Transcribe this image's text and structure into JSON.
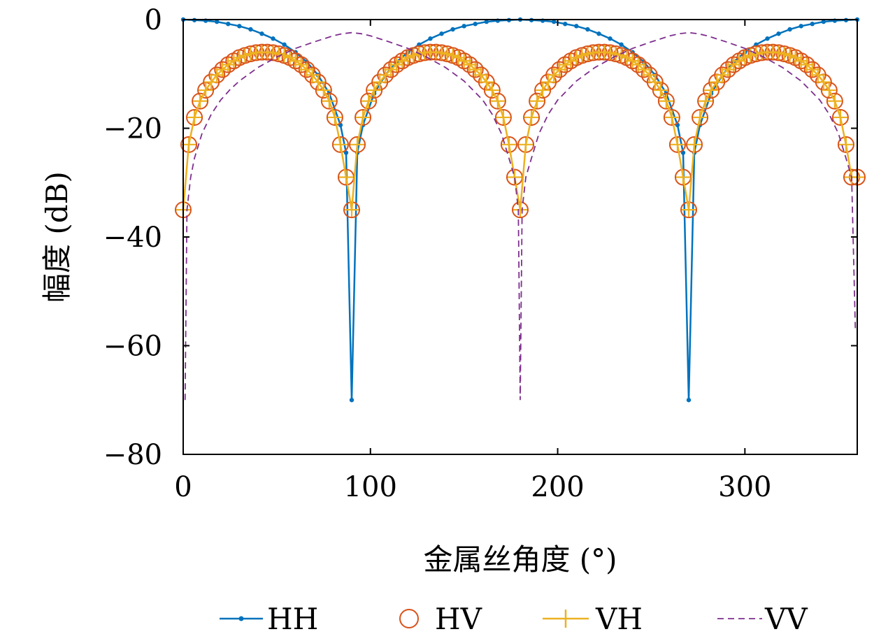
{
  "chart_data": {
    "type": "line",
    "title": "",
    "xlabel": "金属丝角度 (°)",
    "ylabel": "幅度 (dB)",
    "xlim": [
      0,
      360
    ],
    "ylim": [
      -80,
      0
    ],
    "xticks": [
      0,
      100,
      200,
      300
    ],
    "yticks": [
      0,
      -20,
      -40,
      -60,
      -80
    ],
    "xtick_labels": [
      "0",
      "100",
      "200",
      "300"
    ],
    "ytick_labels": [
      "0",
      "−20",
      "−40",
      "−60",
      "−80"
    ],
    "grid": false,
    "legend_position": "bottom",
    "series": [
      {
        "name": "HH",
        "color": "#0072BD",
        "style": "solid-dot",
        "x": [
          0,
          6,
          12,
          18,
          24,
          30,
          36,
          42,
          48,
          54,
          60,
          66,
          72,
          78,
          84,
          87,
          90,
          93,
          96,
          102,
          108,
          114,
          120,
          126,
          132,
          138,
          144,
          150,
          156,
          162,
          168,
          174,
          180,
          186,
          192,
          198,
          204,
          210,
          216,
          222,
          228,
          234,
          240,
          246,
          252,
          258,
          264,
          267,
          270,
          273,
          276,
          282,
          288,
          294,
          300,
          306,
          312,
          318,
          324,
          330,
          336,
          342,
          348,
          354,
          360
        ],
        "y": [
          0,
          -0.1,
          -0.2,
          -0.4,
          -0.8,
          -1.2,
          -1.8,
          -2.6,
          -3.5,
          -4.6,
          -6.0,
          -7.8,
          -10.2,
          -13.6,
          -19.4,
          -24.5,
          -70,
          -24.5,
          -19.4,
          -13.6,
          -10.2,
          -7.8,
          -6.0,
          -4.6,
          -3.5,
          -2.6,
          -1.8,
          -1.2,
          -0.8,
          -0.4,
          -0.2,
          -0.1,
          0,
          -0.1,
          -0.2,
          -0.4,
          -0.8,
          -1.2,
          -1.8,
          -2.6,
          -3.5,
          -4.6,
          -6.0,
          -7.8,
          -10.2,
          -13.6,
          -19.4,
          -24.5,
          -70,
          -24.5,
          -19.4,
          -13.6,
          -10.2,
          -7.8,
          -6.0,
          -4.6,
          -3.5,
          -2.6,
          -1.8,
          -1.2,
          -0.8,
          -0.4,
          -0.2,
          -0.1,
          0
        ]
      },
      {
        "name": "HV",
        "color": "#D95319",
        "style": "circle",
        "x": [
          0,
          3,
          6,
          9,
          12,
          15,
          18,
          21,
          24,
          27,
          30,
          33,
          36,
          39,
          42,
          45,
          48,
          51,
          54,
          57,
          60,
          63,
          66,
          69,
          72,
          75,
          78,
          81,
          84,
          87,
          90,
          93,
          96,
          99,
          102,
          105,
          108,
          111,
          114,
          117,
          120,
          123,
          126,
          129,
          132,
          135,
          138,
          141,
          144,
          147,
          150,
          153,
          156,
          159,
          162,
          165,
          168,
          171,
          174,
          177,
          180,
          183,
          186,
          189,
          192,
          195,
          198,
          201,
          204,
          207,
          210,
          213,
          216,
          219,
          222,
          225,
          228,
          231,
          234,
          237,
          240,
          243,
          246,
          249,
          252,
          255,
          258,
          261,
          264,
          267,
          270,
          273,
          276,
          279,
          282,
          285,
          288,
          291,
          294,
          297,
          300,
          303,
          306,
          309,
          312,
          315,
          318,
          321,
          324,
          327,
          330,
          333,
          336,
          339,
          342,
          345,
          348,
          351,
          354,
          357,
          360
        ],
        "y": [
          -35,
          -23,
          -18,
          -15,
          -13,
          -11.5,
          -10.2,
          -9.2,
          -8.3,
          -7.6,
          -7.0,
          -6.6,
          -6.3,
          -6.1,
          -6.0,
          -6.0,
          -6.1,
          -6.3,
          -6.6,
          -7.0,
          -7.6,
          -8.3,
          -9.2,
          -10.2,
          -11.5,
          -13,
          -15,
          -18,
          -23,
          -29,
          -35,
          -23,
          -18,
          -15,
          -13,
          -11.5,
          -10.2,
          -9.2,
          -8.3,
          -7.6,
          -7.0,
          -6.6,
          -6.3,
          -6.1,
          -6.0,
          -6.0,
          -6.1,
          -6.3,
          -6.6,
          -7.0,
          -7.6,
          -8.3,
          -9.2,
          -10.2,
          -11.5,
          -13,
          -15,
          -18,
          -23,
          -29,
          -35,
          -23,
          -18,
          -15,
          -13,
          -11.5,
          -10.2,
          -9.2,
          -8.3,
          -7.6,
          -7.0,
          -6.6,
          -6.3,
          -6.1,
          -6.0,
          -6.0,
          -6.1,
          -6.3,
          -6.6,
          -7.0,
          -7.6,
          -8.3,
          -9.2,
          -10.2,
          -11.5,
          -13,
          -15,
          -18,
          -23,
          -29,
          -35,
          -23,
          -18,
          -15,
          -13,
          -11.5,
          -10.2,
          -9.2,
          -8.3,
          -7.6,
          -7.0,
          -6.6,
          -6.3,
          -6.1,
          -6.0,
          -6.0,
          -6.1,
          -6.3,
          -6.6,
          -7.0,
          -7.6,
          -8.3,
          -9.2,
          -10.2,
          -11.5,
          -13,
          -15,
          -18,
          -23,
          -29,
          -29
        ]
      },
      {
        "name": "VH",
        "color": "#EDB120",
        "style": "solid-plus",
        "x": [
          0,
          3,
          6,
          9,
          12,
          15,
          18,
          21,
          24,
          27,
          30,
          33,
          36,
          39,
          42,
          45,
          48,
          51,
          54,
          57,
          60,
          63,
          66,
          69,
          72,
          75,
          78,
          81,
          84,
          87,
          90,
          93,
          96,
          99,
          102,
          105,
          108,
          111,
          114,
          117,
          120,
          123,
          126,
          129,
          132,
          135,
          138,
          141,
          144,
          147,
          150,
          153,
          156,
          159,
          162,
          165,
          168,
          171,
          174,
          177,
          180,
          183,
          186,
          189,
          192,
          195,
          198,
          201,
          204,
          207,
          210,
          213,
          216,
          219,
          222,
          225,
          228,
          231,
          234,
          237,
          240,
          243,
          246,
          249,
          252,
          255,
          258,
          261,
          264,
          267,
          270,
          273,
          276,
          279,
          282,
          285,
          288,
          291,
          294,
          297,
          300,
          303,
          306,
          309,
          312,
          315,
          318,
          321,
          324,
          327,
          330,
          333,
          336,
          339,
          342,
          345,
          348,
          351,
          354,
          357,
          360
        ],
        "y": [
          -35,
          -23,
          -18,
          -15,
          -13,
          -11.5,
          -10.2,
          -9.2,
          -8.3,
          -7.6,
          -7.0,
          -6.6,
          -6.3,
          -6.1,
          -6.0,
          -6.0,
          -6.1,
          -6.3,
          -6.6,
          -7.0,
          -7.6,
          -8.3,
          -9.2,
          -10.2,
          -11.5,
          -13,
          -15,
          -18,
          -23,
          -29,
          -35,
          -23,
          -18,
          -15,
          -13,
          -11.5,
          -10.2,
          -9.2,
          -8.3,
          -7.6,
          -7.0,
          -6.6,
          -6.3,
          -6.1,
          -6.0,
          -6.0,
          -6.1,
          -6.3,
          -6.6,
          -7.0,
          -7.6,
          -8.3,
          -9.2,
          -10.2,
          -11.5,
          -13,
          -15,
          -18,
          -23,
          -29,
          -35,
          -23,
          -18,
          -15,
          -13,
          -11.5,
          -10.2,
          -9.2,
          -8.3,
          -7.6,
          -7.0,
          -6.6,
          -6.3,
          -6.1,
          -6.0,
          -6.0,
          -6.1,
          -6.3,
          -6.6,
          -7.0,
          -7.6,
          -8.3,
          -9.2,
          -10.2,
          -11.5,
          -13,
          -15,
          -18,
          -23,
          -29,
          -35,
          -23,
          -18,
          -15,
          -13,
          -11.5,
          -10.2,
          -9.2,
          -8.3,
          -7.6,
          -7.0,
          -6.6,
          -6.3,
          -6.1,
          -6.0,
          -6.0,
          -6.1,
          -6.3,
          -6.6,
          -7.0,
          -7.6,
          -8.3,
          -9.2,
          -10.2,
          -11.5,
          -13,
          -15,
          -18,
          -23,
          -29,
          -29
        ]
      },
      {
        "name": "VV",
        "color": "#7E2F8E",
        "style": "dashed",
        "x": [
          1,
          2,
          4,
          6,
          10,
          15,
          20,
          25,
          30,
          40,
          50,
          60,
          70,
          80,
          85,
          90,
          95,
          100,
          110,
          120,
          130,
          140,
          150,
          160,
          165,
          170,
          174,
          177,
          179,
          180,
          181,
          183,
          186,
          190,
          195,
          200,
          210,
          220,
          230,
          240,
          250,
          260,
          265,
          270,
          275,
          280,
          290,
          300,
          310,
          320,
          330,
          340,
          345,
          350,
          354,
          357,
          359
        ],
        "y": [
          -70,
          -35,
          -29,
          -25.5,
          -21,
          -17.4,
          -14.8,
          -12.9,
          -11.3,
          -8.8,
          -6.9,
          -5.3,
          -4.1,
          -3.0,
          -2.6,
          -2.4,
          -2.6,
          -3.0,
          -4.1,
          -5.3,
          -6.9,
          -8.8,
          -11.3,
          -14.8,
          -17.4,
          -21,
          -25.5,
          -29,
          -35,
          -70,
          -35,
          -29,
          -25.5,
          -21,
          -17.4,
          -14.8,
          -11.3,
          -8.8,
          -6.9,
          -5.3,
          -4.1,
          -3.0,
          -2.6,
          -2.4,
          -2.6,
          -3.0,
          -4.1,
          -5.3,
          -6.9,
          -8.8,
          -11.3,
          -14.8,
          -17.4,
          -21,
          -25.5,
          -29,
          -57
        ]
      }
    ]
  }
}
